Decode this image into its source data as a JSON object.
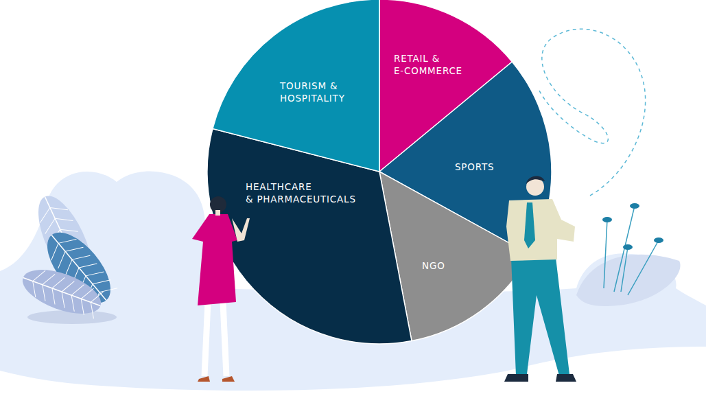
{
  "chart_data": {
    "type": "pie",
    "categories": [
      "RETAIL &\nE-COMMERCE",
      "SPORTS",
      "NGO",
      "HEALTHCARE\n& PHARMACEUTICALS",
      "TOURISM &\nHOSPITALITY"
    ],
    "values": [
      14,
      19,
      14,
      32,
      21
    ],
    "colors": [
      "#d4007f",
      "#0f5a86",
      "#8e8e8e",
      "#062d48",
      "#0690b0"
    ]
  }
}
